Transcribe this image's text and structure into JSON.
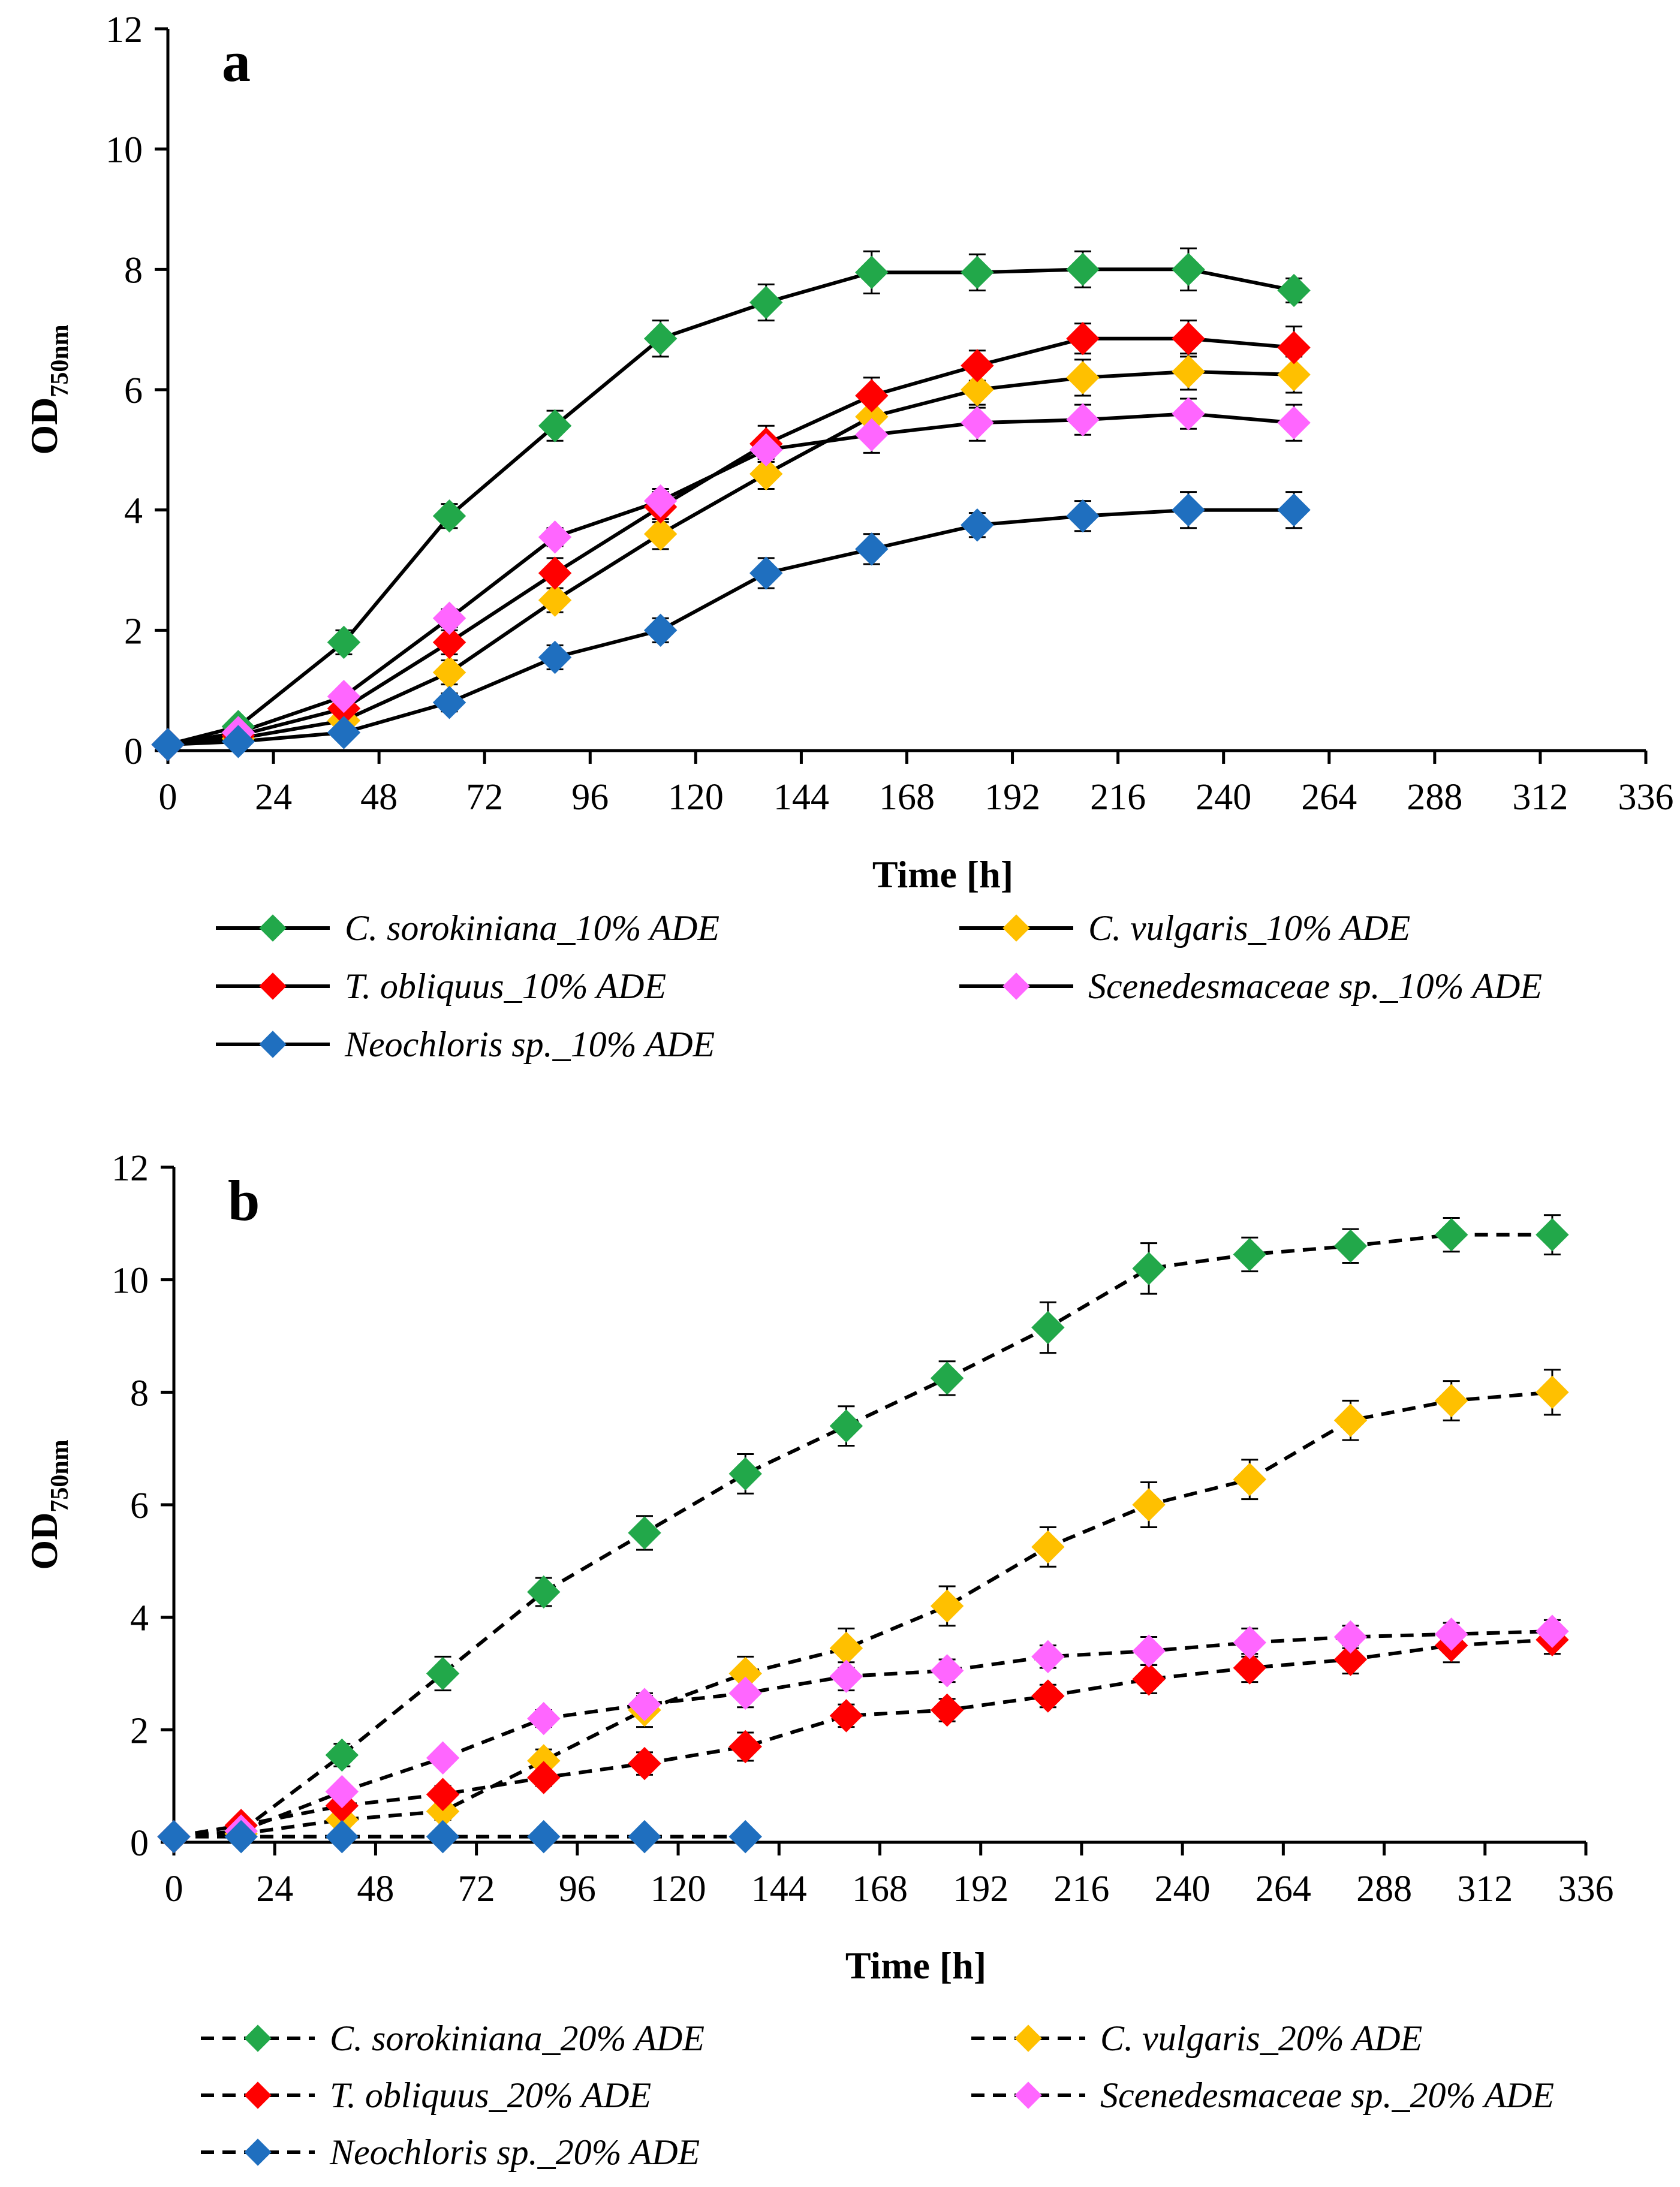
{
  "chart_data": [
    {
      "type": "line",
      "panel": "a",
      "xlabel": "Time [h]",
      "ylabel": "OD",
      "ylabel_sub": "750nm",
      "xlim": [
        0,
        336
      ],
      "ylim": [
        0,
        12
      ],
      "xticks": [
        0,
        24,
        48,
        72,
        96,
        120,
        144,
        168,
        192,
        216,
        240,
        264,
        288,
        312,
        336
      ],
      "yticks": [
        0,
        2,
        4,
        6,
        8,
        10,
        12
      ],
      "line_style": "solid",
      "series": [
        {
          "name": "C. sorokiniana_10% ADE",
          "color": "#22a84a",
          "x": [
            0,
            16,
            40,
            64,
            88,
            112,
            136,
            160,
            184,
            208,
            232,
            256
          ],
          "values": [
            0.1,
            0.4,
            1.8,
            3.9,
            5.4,
            6.85,
            7.45,
            7.95,
            7.95,
            8.0,
            8.0,
            7.65
          ],
          "err": [
            0.05,
            0.1,
            0.2,
            0.2,
            0.25,
            0.3,
            0.3,
            0.35,
            0.3,
            0.3,
            0.35,
            0.2
          ]
        },
        {
          "name": "C. vulgaris_10% ADE",
          "color": "#ffc000",
          "x": [
            0,
            16,
            40,
            64,
            88,
            112,
            136,
            160,
            184,
            208,
            232,
            256
          ],
          "values": [
            0.1,
            0.2,
            0.5,
            1.3,
            2.5,
            3.6,
            4.6,
            5.55,
            6.0,
            6.2,
            6.3,
            6.25
          ],
          "err": [
            0.05,
            0.05,
            0.1,
            0.2,
            0.2,
            0.25,
            0.25,
            0.3,
            0.3,
            0.3,
            0.3,
            0.3
          ]
        },
        {
          "name": "T. obliquus_10% ADE",
          "color": "#ff0000",
          "x": [
            0,
            16,
            40,
            64,
            88,
            112,
            136,
            160,
            184,
            208,
            232,
            256
          ],
          "values": [
            0.1,
            0.25,
            0.7,
            1.8,
            2.95,
            4.05,
            5.1,
            5.9,
            6.4,
            6.85,
            6.85,
            6.7
          ],
          "err": [
            0.05,
            0.05,
            0.1,
            0.2,
            0.25,
            0.25,
            0.3,
            0.3,
            0.25,
            0.25,
            0.3,
            0.35
          ]
        },
        {
          "name": "Scenedesmaceae sp._10% ADE",
          "color": "#ff66ff",
          "x": [
            0,
            16,
            40,
            64,
            88,
            112,
            136,
            160,
            184,
            208,
            232,
            256
          ],
          "values": [
            0.1,
            0.3,
            0.9,
            2.2,
            3.55,
            4.15,
            5.0,
            5.25,
            5.45,
            5.5,
            5.6,
            5.45
          ],
          "err": [
            0.05,
            0.05,
            0.1,
            0.15,
            0.15,
            0.2,
            0.2,
            0.3,
            0.3,
            0.25,
            0.25,
            0.3
          ]
        },
        {
          "name": "Neochloris sp._10% ADE",
          "color": "#1f6fbf",
          "x": [
            0,
            16,
            40,
            64,
            88,
            112,
            136,
            160,
            184,
            208,
            232,
            256
          ],
          "values": [
            0.1,
            0.15,
            0.3,
            0.8,
            1.55,
            2.0,
            2.95,
            3.35,
            3.75,
            3.9,
            4.0,
            4.0
          ],
          "err": [
            0.05,
            0.05,
            0.1,
            0.15,
            0.2,
            0.2,
            0.25,
            0.25,
            0.2,
            0.25,
            0.3,
            0.3
          ]
        }
      ]
    },
    {
      "type": "line",
      "panel": "b",
      "xlabel": "Time [h]",
      "ylabel": "OD",
      "ylabel_sub": "750nm",
      "xlim": [
        0,
        336
      ],
      "ylim": [
        0,
        12
      ],
      "xticks": [
        0,
        24,
        48,
        72,
        96,
        120,
        144,
        168,
        192,
        216,
        240,
        264,
        288,
        312,
        336
      ],
      "yticks": [
        0,
        2,
        4,
        6,
        8,
        10,
        12
      ],
      "line_style": "dashed",
      "series": [
        {
          "name": "C. sorokiniana_20% ADE",
          "color": "#22a84a",
          "x": [
            0,
            16,
            40,
            64,
            88,
            112,
            136,
            160,
            184,
            208,
            232,
            256,
            280,
            304,
            328
          ],
          "values": [
            0.1,
            0.2,
            1.55,
            3.0,
            4.45,
            5.5,
            6.55,
            7.4,
            8.25,
            9.15,
            10.2,
            10.45,
            10.6,
            10.8,
            10.8
          ],
          "err": [
            0.05,
            0.05,
            0.2,
            0.3,
            0.25,
            0.3,
            0.35,
            0.35,
            0.3,
            0.45,
            0.45,
            0.3,
            0.3,
            0.3,
            0.35
          ]
        },
        {
          "name": "C. vulgaris_20% ADE",
          "color": "#ffc000",
          "x": [
            0,
            16,
            40,
            64,
            88,
            112,
            136,
            160,
            184,
            208,
            232,
            256,
            280,
            304,
            328
          ],
          "values": [
            0.1,
            0.15,
            0.4,
            0.55,
            1.45,
            2.35,
            3.0,
            3.45,
            4.2,
            5.25,
            6.0,
            6.45,
            7.5,
            7.85,
            8.0
          ],
          "err": [
            0.05,
            0.05,
            0.1,
            0.15,
            0.2,
            0.3,
            0.3,
            0.35,
            0.35,
            0.35,
            0.4,
            0.35,
            0.35,
            0.35,
            0.4
          ]
        },
        {
          "name": "T. obliquus_20% ADE",
          "color": "#ff0000",
          "x": [
            0,
            16,
            40,
            64,
            88,
            112,
            136,
            160,
            184,
            208,
            232,
            256,
            280,
            304,
            328
          ],
          "values": [
            0.1,
            0.3,
            0.65,
            0.85,
            1.15,
            1.4,
            1.7,
            2.25,
            2.35,
            2.6,
            2.9,
            3.1,
            3.25,
            3.5,
            3.6
          ],
          "err": [
            0.05,
            0.05,
            0.1,
            0.15,
            0.15,
            0.2,
            0.25,
            0.2,
            0.2,
            0.2,
            0.25,
            0.25,
            0.25,
            0.3,
            0.25
          ]
        },
        {
          "name": "Scenedesmaceae sp._20% ADE",
          "color": "#ff66ff",
          "x": [
            0,
            16,
            40,
            64,
            88,
            112,
            136,
            160,
            184,
            208,
            232,
            256,
            280,
            304,
            328
          ],
          "values": [
            0.1,
            0.2,
            0.9,
            1.5,
            2.2,
            2.45,
            2.65,
            2.95,
            3.05,
            3.3,
            3.4,
            3.55,
            3.65,
            3.7,
            3.75
          ],
          "err": [
            0.05,
            0.05,
            0.1,
            0.1,
            0.15,
            0.15,
            0.25,
            0.25,
            0.2,
            0.2,
            0.25,
            0.25,
            0.2,
            0.2,
            0.2
          ]
        },
        {
          "name": "Neochloris sp._20% ADE",
          "color": "#1f6fbf",
          "x": [
            0,
            16,
            40,
            64,
            88,
            112,
            136
          ],
          "values": [
            0.1,
            0.1,
            0.1,
            0.1,
            0.1,
            0.1,
            0.1
          ],
          "err": [
            0.02,
            0.02,
            0.02,
            0.02,
            0.02,
            0.02,
            0.02
          ]
        }
      ]
    }
  ]
}
